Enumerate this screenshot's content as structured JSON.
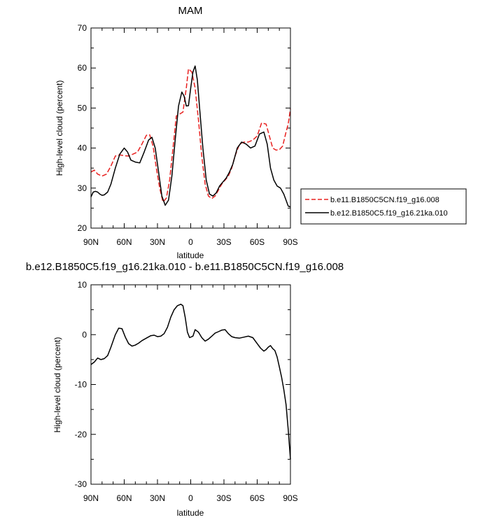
{
  "chart_data": [
    {
      "type": "line",
      "title": "MAM",
      "xlabel": "latitude",
      "ylabel": "High-level cloud (percent)",
      "xlim": [
        90,
        -90
      ],
      "ylim": [
        20,
        70
      ],
      "xticks": [
        90,
        60,
        30,
        0,
        -30,
        -60,
        -90
      ],
      "xtick_labels": [
        "90N",
        "60N",
        "30N",
        "0",
        "30S",
        "60S",
        "90S"
      ],
      "yticks": [
        20,
        30,
        40,
        50,
        60,
        70
      ],
      "ytick_labels": [
        "20",
        "30",
        "40",
        "50",
        "60",
        "70"
      ],
      "legend_position": "right",
      "series": [
        {
          "name": "b.e11.B1850C5CN.f19_g16.008",
          "color": "#e8201f",
          "dash": "dashed",
          "x": [
            90,
            87,
            84,
            80,
            76,
            72,
            68,
            64,
            60,
            56,
            52,
            48,
            44,
            40,
            37,
            34,
            31,
            28,
            25,
            22,
            19,
            16,
            13,
            10,
            7,
            4,
            2,
            -1,
            -4,
            -7,
            -10,
            -13,
            -16,
            -19,
            -22,
            -25,
            -28,
            -31,
            -34,
            -37,
            -40,
            -44,
            -48,
            -52,
            -56,
            -60,
            -64,
            -68,
            -71,
            -74,
            -77,
            -80,
            -83,
            -86,
            -88,
            -90
          ],
          "y": [
            34,
            34.5,
            33.5,
            33,
            33.5,
            35.5,
            38,
            38.3,
            38.1,
            38,
            38.5,
            39,
            41,
            43.2,
            43.3,
            40.5,
            35,
            30,
            26.5,
            27.5,
            32,
            40,
            48,
            48.5,
            49,
            55,
            59.8,
            59,
            55,
            47,
            38,
            31,
            28,
            27.4,
            28,
            29.5,
            31,
            32,
            33,
            35,
            38,
            41,
            41.5,
            41.5,
            42,
            43,
            46.3,
            46,
            43,
            40,
            39.5,
            39.6,
            40.5,
            44,
            46,
            49.8
          ]
        },
        {
          "name": "b.e12.B1850C5.f19_g16.21ka.010",
          "color": "#000000",
          "dash": "solid",
          "x": [
            90,
            88,
            86,
            84,
            82,
            80,
            78,
            75,
            72,
            68,
            64,
            60,
            57,
            54,
            50,
            46,
            42,
            38,
            35,
            32,
            29,
            26,
            23,
            20,
            17,
            14,
            11,
            8,
            6,
            4,
            2,
            0,
            -2,
            -4,
            -6,
            -8,
            -11,
            -14,
            -17,
            -20,
            -23,
            -26,
            -29,
            -32,
            -35,
            -38,
            -42,
            -46,
            -50,
            -54,
            -58,
            -62,
            -66,
            -69,
            -72,
            -75,
            -78,
            -81,
            -84,
            -86,
            -88,
            -90
          ],
          "y": [
            27.8,
            29,
            29.2,
            29,
            28.5,
            28.2,
            28.3,
            29,
            31,
            35,
            38.5,
            40,
            39,
            37,
            36.5,
            36.3,
            39,
            42,
            42.7,
            40,
            34,
            28,
            25.7,
            27,
            33,
            42,
            50.5,
            54,
            53,
            50.5,
            50.6,
            55,
            59,
            60.5,
            57,
            50,
            40,
            32,
            28.5,
            28,
            28.8,
            30.5,
            31.5,
            32.5,
            34,
            36,
            40,
            41.5,
            41,
            40,
            40.5,
            43.5,
            44,
            41,
            35,
            32,
            30.5,
            30,
            28.5,
            27,
            25.5,
            25.3
          ]
        }
      ]
    },
    {
      "type": "line",
      "title": "b.e12.B1850C5.f19_g16.21ka.010 - b.e11.B1850C5CN.f19_g16.008",
      "xlabel": "latitude",
      "ylabel": "High-level cloud (percent)",
      "xlim": [
        90,
        -90
      ],
      "ylim": [
        -30,
        10
      ],
      "xticks": [
        90,
        60,
        30,
        0,
        -30,
        -60,
        -90
      ],
      "xtick_labels": [
        "90N",
        "60N",
        "30N",
        "0",
        "30S",
        "60S",
        "90S"
      ],
      "yticks": [
        -30,
        -20,
        -10,
        0,
        10
      ],
      "ytick_labels": [
        "-30",
        "-20",
        "-10",
        "0",
        "10"
      ],
      "series": [
        {
          "color": "#000000",
          "dash": "solid",
          "x": [
            90,
            87,
            84,
            81,
            78,
            75,
            72,
            68,
            65,
            62,
            59,
            56,
            53,
            50,
            47,
            44,
            40,
            36,
            33,
            30,
            27,
            24,
            21,
            18,
            15,
            12,
            9,
            7,
            5,
            3,
            1,
            -2,
            -4,
            -7,
            -10,
            -13,
            -16,
            -19,
            -22,
            -25,
            -28,
            -31,
            -34,
            -37,
            -40,
            -44,
            -48,
            -52,
            -56,
            -60,
            -63,
            -66,
            -68,
            -70,
            -72,
            -74,
            -76,
            -78,
            -80,
            -82,
            -84,
            -86,
            -88,
            -90
          ],
          "y": [
            -6,
            -5.5,
            -4.7,
            -5,
            -4.8,
            -4.2,
            -2.5,
            0,
            1.3,
            1.2,
            -0.5,
            -1.8,
            -2.3,
            -2.1,
            -1.7,
            -1.2,
            -0.7,
            -0.2,
            -0.1,
            -0.4,
            -0.3,
            0.2,
            1.5,
            3.5,
            5,
            5.8,
            6.1,
            5.8,
            3.5,
            0.5,
            -0.6,
            -0.3,
            1,
            0.5,
            -0.6,
            -1.3,
            -0.9,
            -0.3,
            0.3,
            0.6,
            0.9,
            1,
            0.2,
            -0.4,
            -0.6,
            -0.7,
            -0.5,
            -0.3,
            -0.6,
            -1.8,
            -2.7,
            -3.3,
            -3,
            -2.5,
            -2.2,
            -2.8,
            -3.2,
            -4.5,
            -6.5,
            -8.5,
            -11,
            -14,
            -19,
            -25
          ]
        }
      ]
    }
  ]
}
